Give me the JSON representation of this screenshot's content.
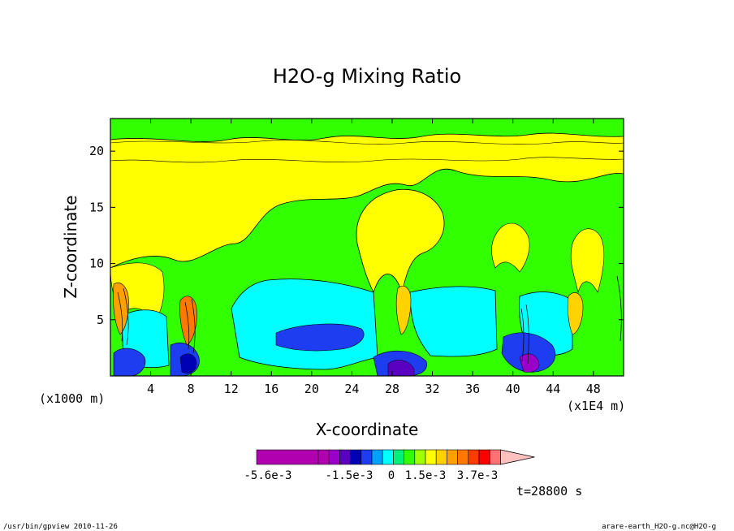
{
  "chart_data": {
    "type": "heatmap",
    "title": "H2O-g Mixing Ratio",
    "xlabel": "X-coordinate",
    "ylabel": "Z-coordinate",
    "x_unit": "(x1E4 m)",
    "y_unit": "(x1000 m)",
    "xlim": [
      0,
      51
    ],
    "ylim": [
      0,
      22.9
    ],
    "x_ticks": [
      4,
      8,
      12,
      16,
      20,
      24,
      28,
      32,
      36,
      40,
      44,
      48
    ],
    "y_ticks": [
      5,
      10,
      15,
      20
    ],
    "colorbar": {
      "tick_labels": [
        "-5.6e-3",
        "-1.5e-3",
        "0",
        "1.5e-3",
        "3.7e-3"
      ],
      "colors": [
        "#b000b0",
        "#b000b0",
        "#9a00c8",
        "#5a00c0",
        "#0000b4",
        "#1e3cf0",
        "#00a0ff",
        "#00ffff",
        "#00f078",
        "#32ff00",
        "#a0ff00",
        "#ffff00",
        "#ffd200",
        "#ffa000",
        "#ff7800",
        "#ff3c00",
        "#ff0000",
        "#ff7070",
        "#ffc0c0"
      ]
    },
    "time_label": "t=28800 s"
  },
  "footer": {
    "left": "/usr/bin/gpview  2010-11-26",
    "right": "arare-earth_H2O-g.nc@H2O-g"
  }
}
